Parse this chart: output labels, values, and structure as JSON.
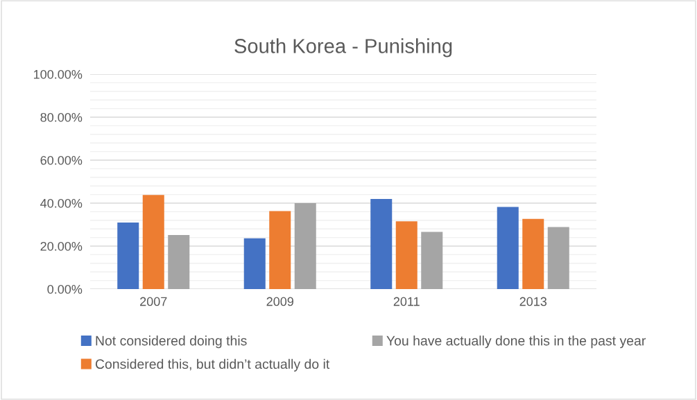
{
  "chart_data": {
    "type": "bar",
    "title": "South Korea - Punishing",
    "categories": [
      "2007",
      "2009",
      "2011",
      "2013"
    ],
    "series": [
      {
        "name": "Not considered doing this",
        "color": "#4472c4",
        "values": [
          31.0,
          23.6,
          41.9,
          38.2
        ]
      },
      {
        "name": "Considered this, but didn’t actually do it",
        "color": "#ed7d31",
        "values": [
          43.8,
          36.3,
          31.5,
          32.7
        ]
      },
      {
        "name": "You have actually done this in the past year",
        "color": "#a5a5a5",
        "values": [
          25.2,
          40.0,
          26.6,
          28.9
        ]
      }
    ],
    "ylim": [
      0,
      100
    ],
    "yticks": [
      {
        "value": 0,
        "label": "0.00%"
      },
      {
        "value": 4,
        "label": null
      },
      {
        "value": 8,
        "label": null
      },
      {
        "value": 12,
        "label": null
      },
      {
        "value": 16,
        "label": null
      },
      {
        "value": 20,
        "label": "20.00%"
      },
      {
        "value": 24,
        "label": null
      },
      {
        "value": 28,
        "label": null
      },
      {
        "value": 32,
        "label": null
      },
      {
        "value": 36,
        "label": null
      },
      {
        "value": 40,
        "label": "40.00%"
      },
      {
        "value": 44,
        "label": null
      },
      {
        "value": 48,
        "label": null
      },
      {
        "value": 52,
        "label": null
      },
      {
        "value": 56,
        "label": null
      },
      {
        "value": 60,
        "label": "60.00%"
      },
      {
        "value": 64,
        "label": null
      },
      {
        "value": 68,
        "label": null
      },
      {
        "value": 72,
        "label": null
      },
      {
        "value": 76,
        "label": null
      },
      {
        "value": 80,
        "label": "80.00%"
      },
      {
        "value": 84,
        "label": null
      },
      {
        "value": 88,
        "label": null
      },
      {
        "value": 92,
        "label": null
      },
      {
        "value": 96,
        "label": null
      },
      {
        "value": 100,
        "label": "100.00%"
      }
    ],
    "grid": "y",
    "legend": "bottom"
  }
}
